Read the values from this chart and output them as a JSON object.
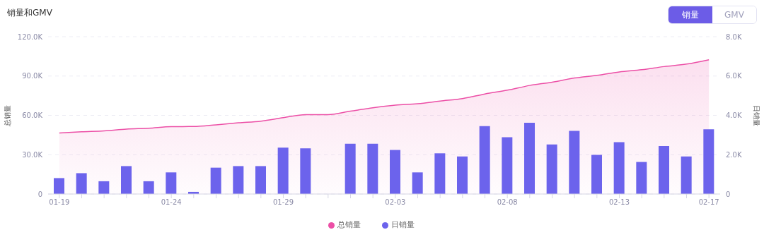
{
  "chart_data": {
    "type": "bar",
    "title": "销量和GMV",
    "annotations": [
      "销量",
      "GMV"
    ],
    "categories": [
      "01-19",
      null,
      null,
      null,
      null,
      "01-24",
      null,
      null,
      null,
      null,
      "01-29",
      null,
      null,
      null,
      null,
      "02-03",
      null,
      null,
      null,
      null,
      "02-08",
      null,
      null,
      null,
      null,
      "02-13",
      null,
      null,
      null,
      "02-17"
    ],
    "series": [
      {
        "name": "总销量",
        "type": "area",
        "color": "#ec4fa6",
        "values": [
          46600,
          47500,
          48200,
          49500,
          50200,
          51400,
          51500,
          52800,
          54300,
          55600,
          58200,
          60600,
          60600,
          63200,
          65800,
          67800,
          68900,
          70900,
          72800,
          76300,
          79200,
          82800,
          85300,
          88500,
          90500,
          93100,
          94800,
          97200,
          99100,
          102400
        ]
      },
      {
        "name": "日销量",
        "axis": "y2",
        "color": "#6c63ec",
        "values": [
          810,
          1060,
          650,
          1420,
          650,
          1100,
          110,
          1340,
          1420,
          1420,
          2360,
          2320,
          0,
          2560,
          2560,
          2240,
          1100,
          2070,
          1910,
          3450,
          2890,
          3620,
          2520,
          3210,
          1990,
          2640,
          1630,
          2440,
          1910,
          3290
        ]
      }
    ],
    "ylabel": "总销量",
    "y2label": "日销量",
    "ylim": [
      0,
      120000
    ],
    "yticks": [
      0,
      {
        "value": 30000,
        "label": "30.0K"
      },
      {
        "value": 60000,
        "label": "60.0K"
      },
      {
        "value": 90000,
        "label": "90.0K"
      },
      {
        "value": 120000,
        "label": "120.0K"
      }
    ],
    "y2lim": [
      0,
      8000
    ],
    "y2ticks": [
      0,
      {
        "value": 2000,
        "label": "2.0K"
      },
      {
        "value": 4000,
        "label": "4.0K"
      },
      {
        "value": 6000,
        "label": "6.0K"
      },
      {
        "value": 8000,
        "label": "8.0K"
      }
    ],
    "grid": "y",
    "legend": "bottom",
    "marker": "none",
    "line_style": "solid"
  }
}
